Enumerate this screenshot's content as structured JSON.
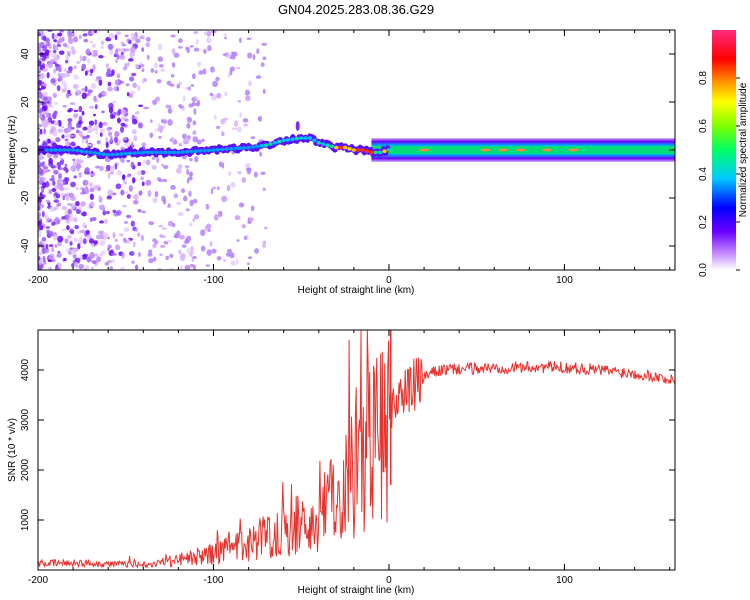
{
  "title": "GN04.2025.283.08.36.G29",
  "chart_data": [
    {
      "type": "heatmap",
      "title": "GN04.2025.283.08.36.G29",
      "xlabel": "Height of straight line (km)",
      "ylabel": "Frequency (Hz)",
      "xlim": [
        -200,
        163
      ],
      "ylim": [
        -50,
        50
      ],
      "xticks": [
        -200,
        -100,
        0,
        100
      ],
      "yticks": [
        -40,
        -20,
        0,
        20,
        40
      ],
      "colorbar": {
        "label": "Normalized spectral amplitude",
        "range": [
          0,
          1
        ],
        "ticks": [
          "0.0",
          "0.2",
          "0.4",
          "0.6",
          "0.8"
        ]
      },
      "ridge": {
        "x": [
          -200,
          -180,
          -160,
          -140,
          -120,
          -100,
          -80,
          -70,
          -60,
          -50,
          -45,
          -40,
          -35,
          -30,
          -25,
          -20,
          -15,
          -10,
          -5,
          0,
          20,
          50,
          100,
          163
        ],
        "freq": [
          0,
          0,
          -2,
          -1,
          -1,
          0,
          1,
          2,
          4,
          5,
          5,
          3,
          2,
          1,
          1,
          0,
          0,
          -1,
          -1,
          0,
          0,
          0,
          0,
          0
        ]
      }
    },
    {
      "type": "line",
      "xlabel": "Height of straight line (km)",
      "ylabel": "SNR (10 * v/v)",
      "xlim": [
        -200,
        163
      ],
      "ylim": [
        0,
        4800
      ],
      "xticks": [
        -200,
        -100,
        0,
        100
      ],
      "yticks": [
        1000,
        2000,
        3000,
        4000
      ],
      "series": [
        {
          "name": "SNR",
          "color": "#e8322d",
          "x": [
            -200,
            -180,
            -160,
            -140,
            -120,
            -100,
            -90,
            -80,
            -70,
            -60,
            -50,
            -40,
            -35,
            -30,
            -25,
            -20,
            -15,
            -10,
            -5,
            -2,
            0,
            1,
            2,
            3,
            5,
            10,
            15,
            20,
            25,
            30,
            40,
            50,
            60,
            70,
            80,
            90,
            100,
            110,
            120,
            130,
            140,
            150,
            163
          ],
          "values": [
            130,
            140,
            120,
            110,
            200,
            320,
            420,
            520,
            700,
            800,
            750,
            1000,
            1300,
            1500,
            1800,
            2000,
            2300,
            2600,
            2850,
            3000,
            3100,
            3250,
            3350,
            3420,
            3480,
            3550,
            3700,
            3850,
            3950,
            4000,
            4020,
            4030,
            4040,
            4050,
            4060,
            4060,
            4050,
            4030,
            4000,
            3970,
            3930,
            3880,
            3780
          ]
        }
      ]
    }
  ]
}
